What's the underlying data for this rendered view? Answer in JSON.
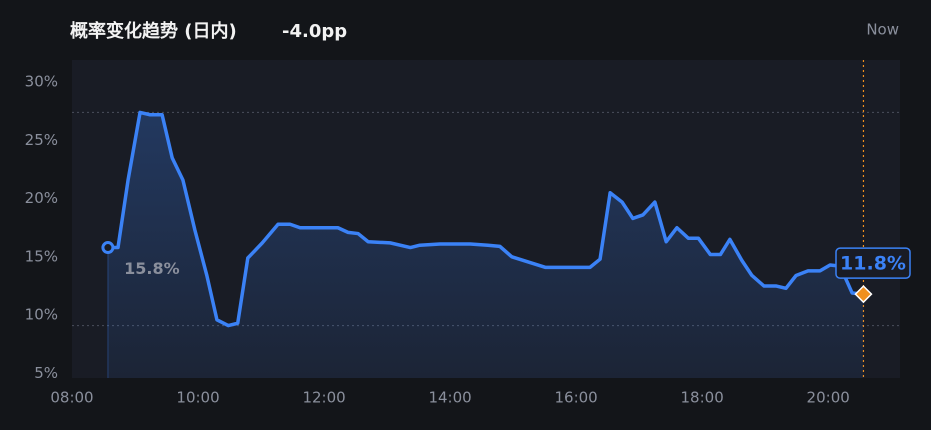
{
  "chart_data": {
    "type": "line",
    "title": "概率变化趋势 (日内)",
    "change": "-4.0pp",
    "now_label": "Now",
    "x": [
      8.57,
      8.73,
      8.89,
      9.08,
      9.24,
      9.43,
      9.59,
      9.76,
      9.95,
      10.14,
      10.3,
      10.48,
      10.63,
      10.79,
      11.02,
      11.27,
      11.46,
      11.62,
      12.22,
      12.38,
      12.54,
      12.7,
      13.05,
      13.37,
      13.52,
      13.84,
      14.32,
      14.6,
      14.79,
      14.98,
      15.51,
      16.22,
      16.38,
      16.54,
      16.73,
      16.9,
      17.06,
      17.25,
      17.43,
      17.6,
      17.78,
      17.94,
      18.13,
      18.29,
      18.44,
      18.63,
      18.79,
      18.98,
      19.17,
      19.33,
      19.49,
      19.68,
      19.87,
      20.03,
      20.19,
      20.38,
      20.56
    ],
    "values": [
      15.8,
      15.8,
      21.6,
      27.4,
      27.2,
      27.2,
      23.5,
      21.6,
      17.3,
      13.4,
      9.6,
      9.1,
      9.3,
      14.9,
      16.2,
      17.8,
      17.8,
      17.5,
      17.5,
      17.1,
      17.0,
      16.3,
      16.2,
      15.8,
      16.0,
      16.1,
      16.1,
      16.0,
      15.9,
      15.0,
      14.1,
      14.1,
      14.8,
      20.5,
      19.7,
      18.3,
      18.6,
      19.7,
      16.3,
      17.5,
      16.6,
      16.6,
      15.2,
      15.2,
      16.5,
      14.7,
      13.4,
      12.5,
      12.5,
      12.3,
      13.4,
      13.8,
      13.8,
      14.3,
      14.2,
      11.9,
      11.8
    ],
    "value_labels": [
      "15.8%",
      null,
      null,
      null,
      null,
      null,
      null,
      null,
      null,
      null,
      null,
      null,
      null,
      null,
      null,
      null,
      null,
      null,
      null,
      null,
      null,
      null,
      null,
      null,
      null,
      null,
      null,
      null,
      null,
      null,
      null,
      null,
      null,
      null,
      null,
      null,
      null,
      null,
      null,
      null,
      null,
      null,
      null,
      null,
      null,
      null,
      null,
      null,
      null,
      null,
      null,
      null,
      null,
      null,
      null,
      null,
      "11.8%"
    ],
    "color": "#3b82f6",
    "end_marker_color": "#f0901e",
    "xlim": [
      8,
      21.14
    ],
    "xticks": [
      {
        "value": 8,
        "label": "08:00"
      },
      {
        "value": 10,
        "label": "10:00"
      },
      {
        "value": 12,
        "label": "12:00"
      },
      {
        "value": 14,
        "label": "14:00"
      },
      {
        "value": 16,
        "label": "16:00"
      },
      {
        "value": 18,
        "label": "18:00"
      },
      {
        "value": 20,
        "label": "20:00"
      }
    ],
    "ylim": [
      4.6,
      31.9
    ],
    "yticks": [
      {
        "value": 5,
        "label": "5%"
      },
      {
        "value": 10,
        "label": "10%"
      },
      {
        "value": 15,
        "label": "15%"
      },
      {
        "value": 20,
        "label": "20%"
      },
      {
        "value": 25,
        "label": "25%"
      },
      {
        "value": 30,
        "label": "30%"
      }
    ],
    "hlines": [
      27.4,
      9.1
    ],
    "now_x": 20.56
  }
}
